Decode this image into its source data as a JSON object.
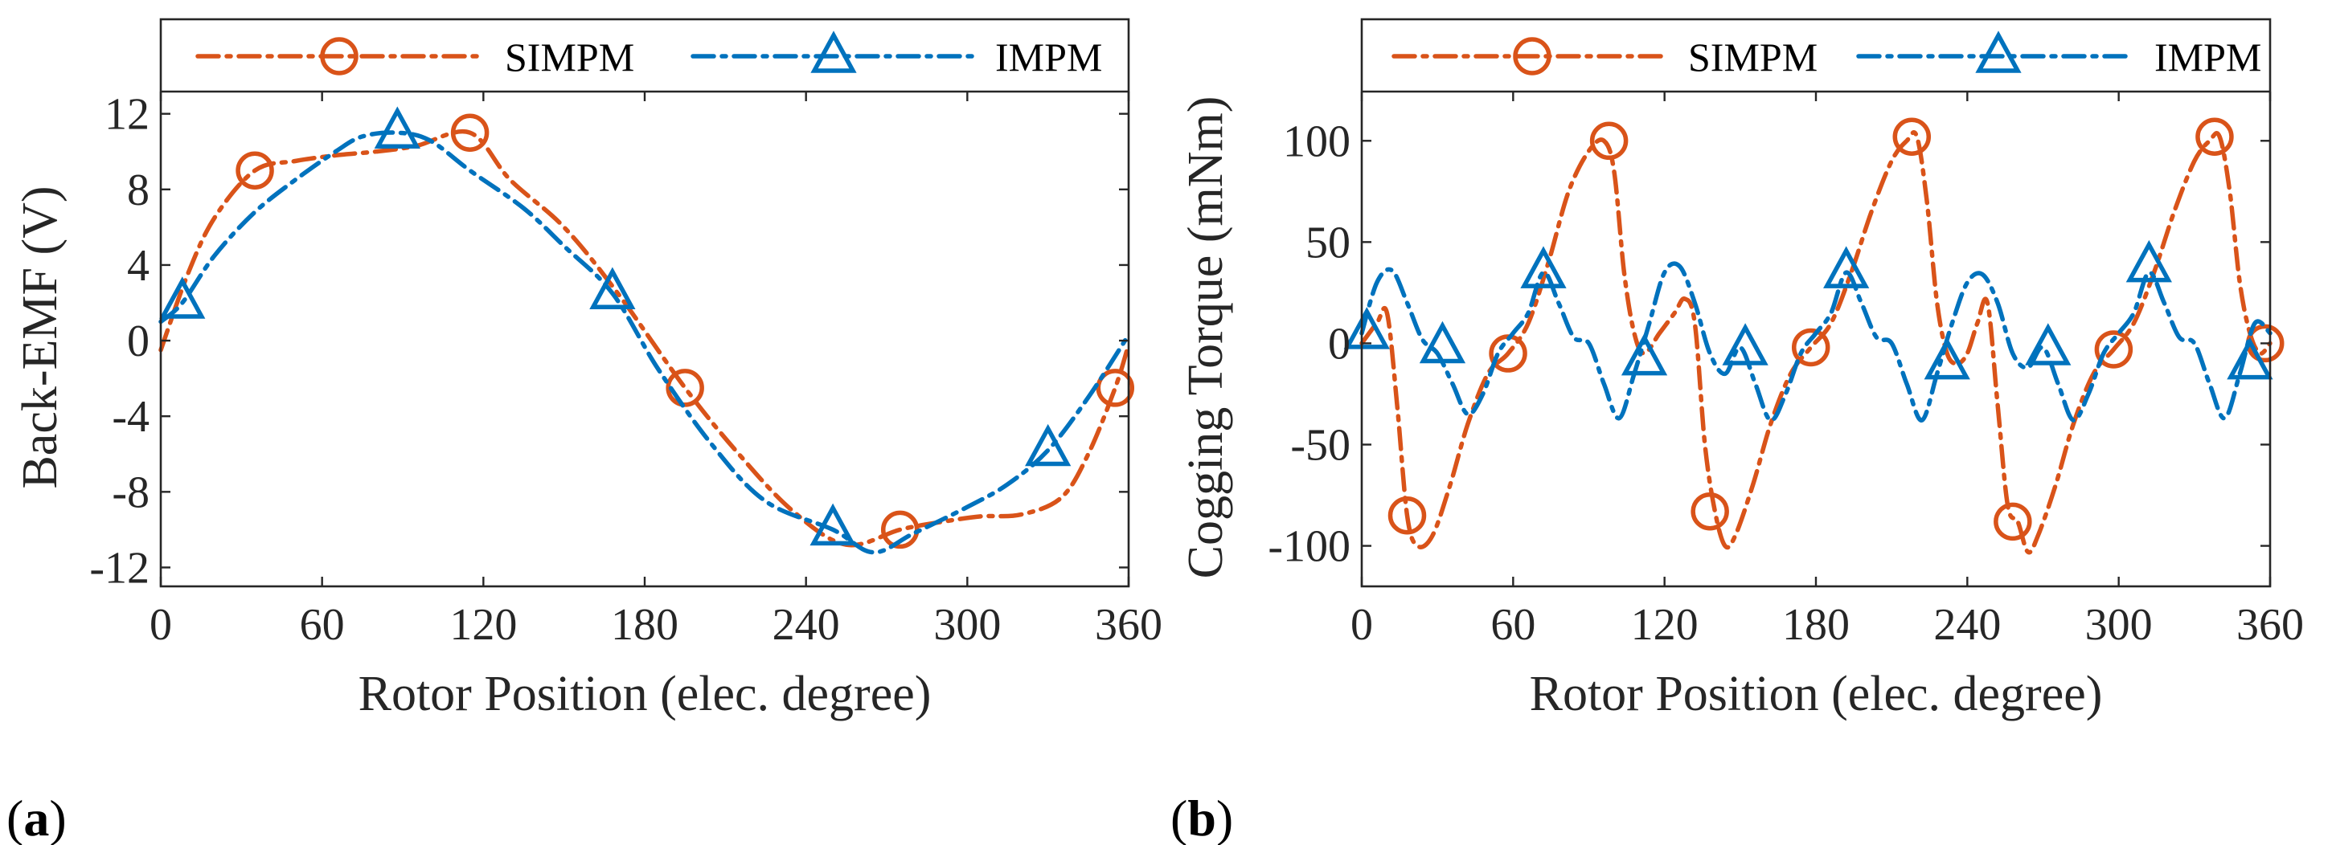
{
  "colors": {
    "simpm": "#D95319",
    "impm": "#0072BD",
    "axis": "#262626"
  },
  "chart_data": [
    {
      "panel_label": "(a)",
      "panel_letter": "a",
      "type": "line",
      "title": "",
      "xlabel": "Rotor Position (elec. degree)",
      "ylabel": "Back-EMF (V)",
      "xlim": [
        0,
        360
      ],
      "ylim": [
        -13,
        17
      ],
      "xticks": [
        0,
        60,
        120,
        180,
        240,
        300,
        360
      ],
      "xtick_labels": [
        "0",
        "60",
        "120",
        "180",
        "240",
        "300",
        "360"
      ],
      "yticks": [
        -12,
        -8,
        -4,
        0,
        4,
        8,
        12
      ],
      "ytick_labels": [
        "-12",
        "-8",
        "-4",
        "0",
        "4",
        "8",
        "12"
      ],
      "legend": {
        "placement": "top inside axes, horizontal",
        "entries": [
          "SIMPM",
          "IMPM"
        ]
      },
      "series": [
        {
          "name": "SIMPM",
          "color": "#D95319",
          "marker": "circle",
          "x": [
            0,
            10,
            20,
            35,
            50,
            65,
            80,
            95,
            115,
            130,
            150,
            170,
            195,
            215,
            235,
            255,
            275,
            290,
            305,
            320,
            335,
            345,
            355,
            360
          ],
          "y": [
            -0.5,
            3.5,
            6.5,
            9.0,
            9.5,
            9.8,
            10.0,
            10.3,
            11.0,
            8.5,
            6.0,
            2.5,
            -2.5,
            -6.0,
            -9.0,
            -10.8,
            -10.0,
            -9.6,
            -9.3,
            -9.2,
            -8.3,
            -6.0,
            -2.5,
            -0.2
          ],
          "marker_x": [
            35,
            115,
            195,
            275,
            355
          ],
          "marker_y": [
            9.0,
            11.0,
            -2.5,
            -10.0,
            -2.5
          ]
        },
        {
          "name": "IMPM",
          "color": "#0072BD",
          "marker": "triangle",
          "x": [
            0,
            8,
            20,
            35,
            50,
            65,
            75,
            88,
            100,
            115,
            135,
            150,
            168,
            185,
            205,
            225,
            250,
            265,
            280,
            300,
            315,
            330,
            345,
            360
          ],
          "y": [
            1.0,
            2.0,
            4.5,
            6.8,
            8.5,
            10.0,
            10.8,
            11.0,
            10.6,
            9.0,
            7.0,
            5.0,
            2.5,
            -1.5,
            -5.5,
            -8.5,
            -10.0,
            -11.2,
            -10.2,
            -8.8,
            -7.6,
            -5.8,
            -3.0,
            0.3
          ],
          "marker_x": [
            8,
            88,
            168,
            250,
            330
          ],
          "marker_y": [
            2.0,
            11.0,
            2.5,
            -10.0,
            -5.8
          ]
        }
      ]
    },
    {
      "panel_label": "(b)",
      "panel_letter": "b",
      "type": "line",
      "title": "",
      "xlabel": "Rotor Position (elec. degree)",
      "ylabel": "Cogging Torque (mNm)",
      "xlim": [
        0,
        360
      ],
      "ylim": [
        -120,
        160
      ],
      "xticks": [
        0,
        60,
        120,
        180,
        240,
        300,
        360
      ],
      "xtick_labels": [
        "0",
        "60",
        "120",
        "180",
        "240",
        "300",
        "360"
      ],
      "yticks": [
        -100,
        -50,
        0,
        50,
        100
      ],
      "ytick_labels": [
        "-100",
        "-50",
        "0",
        "50",
        "100"
      ],
      "legend": {
        "placement": "top inside axes, horizontal",
        "entries": [
          "SIMPM",
          "IMPM"
        ]
      },
      "series": [
        {
          "name": "SIMPM",
          "color": "#D95319",
          "marker": "circle",
          "x": [
            0,
            6,
            10,
            14,
            18,
            22,
            28,
            35,
            42,
            50,
            58,
            66,
            74,
            82,
            90,
            96,
            100,
            104,
            108,
            112,
            118,
            124,
            128,
            132,
            136,
            140,
            144,
            148,
            155,
            162,
            170,
            178,
            186,
            194,
            202,
            210,
            216,
            220,
            224,
            228,
            232,
            236,
            240,
            244,
            248,
            252,
            256,
            260,
            264,
            268,
            275,
            282,
            290,
            298,
            306,
            314,
            322,
            330,
            336,
            340,
            344,
            348,
            352,
            356,
            360
          ],
          "y": [
            0,
            10,
            15,
            -30,
            -85,
            -100,
            -95,
            -70,
            -40,
            -15,
            -5,
            10,
            40,
            75,
            95,
            100,
            85,
            35,
            5,
            -5,
            5,
            15,
            22,
            10,
            -50,
            -83,
            -100,
            -95,
            -70,
            -40,
            -15,
            -2,
            10,
            35,
            65,
            90,
            100,
            102,
            70,
            20,
            -5,
            -10,
            -5,
            10,
            20,
            -30,
            -80,
            -88,
            -103,
            -95,
            -70,
            -40,
            -15,
            -3,
            10,
            35,
            65,
            90,
            100,
            102,
            75,
            30,
            5,
            -5,
            0
          ],
          "marker_x": [
            18,
            58,
            98,
            138,
            178,
            218,
            258,
            298,
            338,
            358
          ],
          "marker_y": [
            -85,
            -5,
            100,
            -83,
            -2,
            102,
            -88,
            -3,
            102,
            0
          ]
        },
        {
          "name": "IMPM",
          "color": "#0072BD",
          "marker": "triangle",
          "x": [
            0,
            6,
            12,
            18,
            24,
            30,
            36,
            42,
            48,
            54,
            60,
            66,
            72,
            78,
            84,
            90,
            96,
            102,
            108,
            114,
            120,
            126,
            132,
            138,
            144,
            150,
            156,
            162,
            168,
            174,
            180,
            186,
            192,
            198,
            204,
            210,
            216,
            222,
            228,
            234,
            240,
            246,
            252,
            258,
            264,
            270,
            276,
            282,
            288,
            294,
            300,
            306,
            312,
            318,
            324,
            330,
            336,
            342,
            348,
            354,
            360
          ],
          "y": [
            5,
            30,
            36,
            20,
            2,
            -5,
            -20,
            -35,
            -25,
            -5,
            5,
            15,
            35,
            20,
            3,
            0,
            -20,
            -37,
            -15,
            10,
            35,
            38,
            20,
            -5,
            -15,
            -2,
            -20,
            -38,
            -25,
            -5,
            5,
            15,
            35,
            20,
            3,
            0,
            -20,
            -38,
            -15,
            10,
            30,
            34,
            20,
            -5,
            -12,
            -2,
            -20,
            -38,
            -25,
            -5,
            5,
            15,
            35,
            20,
            3,
            0,
            -20,
            -37,
            -15,
            10,
            5
          ],
          "marker_x": [
            2,
            32,
            72,
            112,
            152,
            192,
            232,
            272,
            312,
            352
          ],
          "marker_y": [
            5,
            -2,
            35,
            -8,
            -3,
            35,
            -10,
            -3,
            38,
            -10
          ]
        }
      ]
    }
  ]
}
